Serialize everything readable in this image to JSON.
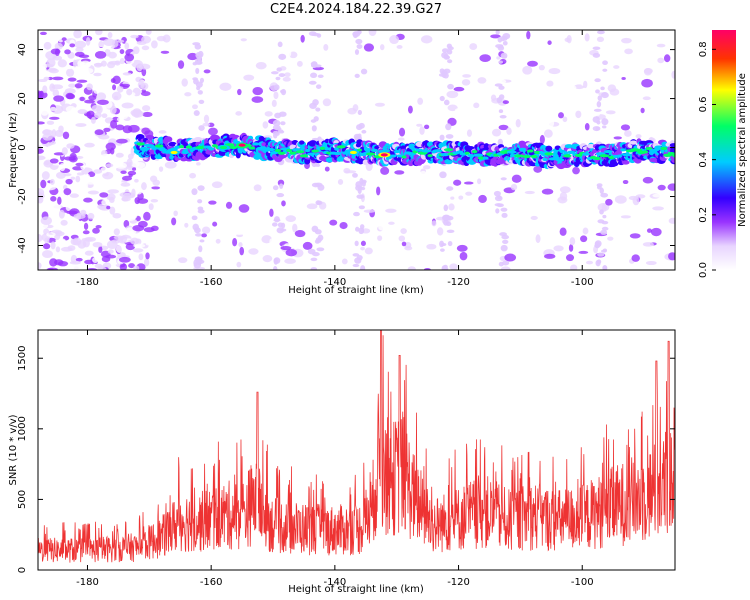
{
  "chart_data": [
    {
      "type": "heatmap",
      "title": "C2E4.2024.184.22.39.G27",
      "xlabel": "Height of straight line (km)",
      "ylabel": "Frequency (Hz)",
      "xlim": [
        -188,
        -85
      ],
      "ylim": [
        -50,
        48
      ],
      "xticks": [
        -180,
        -160,
        -140,
        -120,
        -100
      ],
      "yticks": [
        -40,
        -20,
        0,
        20,
        40
      ],
      "colorbar": {
        "label": "Normalized spectral amplitude",
        "range": [
          0,
          0.87
        ],
        "ticks": [
          0.0,
          0.2,
          0.4,
          0.6,
          0.8
        ],
        "colormap": [
          "#ffffff",
          "#e8d4ff",
          "#9933ff",
          "#3300ff",
          "#00ccff",
          "#00ff66",
          "#ffff00",
          "#ff3300",
          "#ff0066"
        ]
      },
      "band": {
        "x_start": -172,
        "x_end": -85,
        "center_hz": [
          [
            -172,
            1
          ],
          [
            -165,
            -1
          ],
          [
            -160,
            0
          ],
          [
            -155,
            1
          ],
          [
            -150,
            -1
          ],
          [
            -145,
            -2
          ],
          [
            -140,
            -1
          ],
          [
            -135,
            -2
          ],
          [
            -130,
            -3
          ],
          [
            -125,
            -2
          ],
          [
            -120,
            -2
          ],
          [
            -115,
            -3
          ],
          [
            -110,
            -2
          ],
          [
            -105,
            -4
          ],
          [
            -100,
            -3
          ],
          [
            -95,
            -3
          ],
          [
            -90,
            -1
          ],
          [
            -86,
            -2
          ]
        ],
        "peaks": [
          {
            "x": -155,
            "y": 1,
            "amp": 0.85
          },
          {
            "x": -132,
            "y": -3,
            "amp": 0.87
          },
          {
            "x": -166,
            "y": -2,
            "amp": 0.6
          },
          {
            "x": -158,
            "y": 0,
            "amp": 0.55
          },
          {
            "x": -137,
            "y": -2,
            "amp": 0.6
          }
        ]
      }
    },
    {
      "type": "line",
      "title": "",
      "xlabel": "Height of straight line (km)",
      "ylabel": "SNR (10 * v/v)",
      "xlim": [
        -188,
        -85
      ],
      "ylim": [
        0,
        1700
      ],
      "xticks": [
        -180,
        -160,
        -140,
        -120,
        -100
      ],
      "yticks": [
        0,
        500,
        1000,
        1500
      ],
      "color": "#ee3333",
      "envelope": [
        [
          -188,
          200
        ],
        [
          -180,
          200
        ],
        [
          -172,
          230
        ],
        [
          -168,
          330
        ],
        [
          -165,
          500
        ],
        [
          -162,
          480
        ],
        [
          -158,
          550
        ],
        [
          -155,
          560
        ],
        [
          -153,
          700
        ],
        [
          -150,
          450
        ],
        [
          -145,
          420
        ],
        [
          -140,
          400
        ],
        [
          -136,
          420
        ],
        [
          -134,
          600
        ],
        [
          -133,
          1100
        ],
        [
          -131,
          900
        ],
        [
          -129,
          1000
        ],
        [
          -127,
          700
        ],
        [
          -124,
          450
        ],
        [
          -120,
          520
        ],
        [
          -116,
          600
        ],
        [
          -112,
          500
        ],
        [
          -108,
          550
        ],
        [
          -104,
          500
        ],
        [
          -100,
          530
        ],
        [
          -96,
          620
        ],
        [
          -92,
          700
        ],
        [
          -88,
          800
        ],
        [
          -86,
          900
        ]
      ],
      "peaks": [
        {
          "x": -132.5,
          "y": 1700
        },
        {
          "x": -129.5,
          "y": 1520
        },
        {
          "x": -152.5,
          "y": 1260
        },
        {
          "x": -86,
          "y": 1620
        },
        {
          "x": -88,
          "y": 1480
        }
      ]
    }
  ]
}
